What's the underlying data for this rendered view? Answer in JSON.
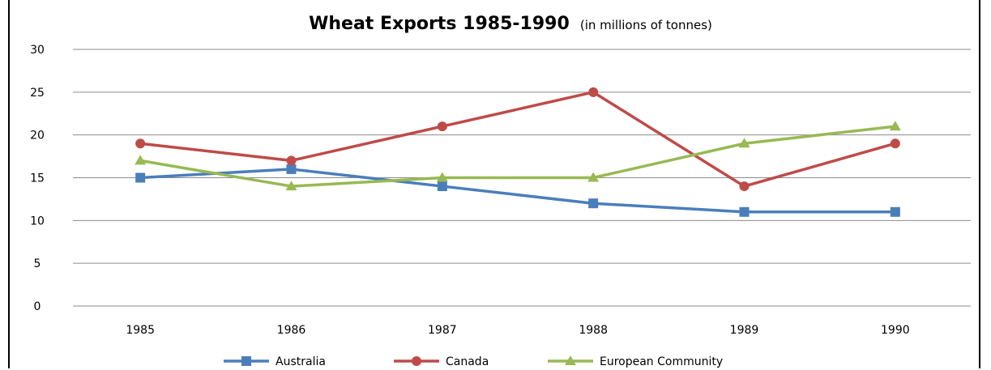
{
  "chart_data": {
    "type": "line",
    "title": "Wheat Exports 1985-1990",
    "subtitle": "(in millions of tonnes)",
    "xlabel": "",
    "ylabel": "",
    "categories": [
      "1985",
      "1986",
      "1987",
      "1988",
      "1989",
      "1990"
    ],
    "ylim": [
      0,
      30
    ],
    "yticks": [
      0,
      5,
      10,
      15,
      20,
      25,
      30
    ],
    "grid": true,
    "legend_position": "bottom",
    "series": [
      {
        "name": "Australia",
        "values": [
          15,
          16,
          14,
          12,
          11,
          11
        ],
        "color": "#4a7ebb",
        "marker": "square"
      },
      {
        "name": "Canada",
        "values": [
          19,
          17,
          21,
          25,
          14,
          19
        ],
        "color": "#be4b48",
        "marker": "circle"
      },
      {
        "name": "European Community",
        "values": [
          17,
          14,
          15,
          15,
          19,
          21
        ],
        "color": "#98b954",
        "marker": "triangle"
      }
    ]
  }
}
